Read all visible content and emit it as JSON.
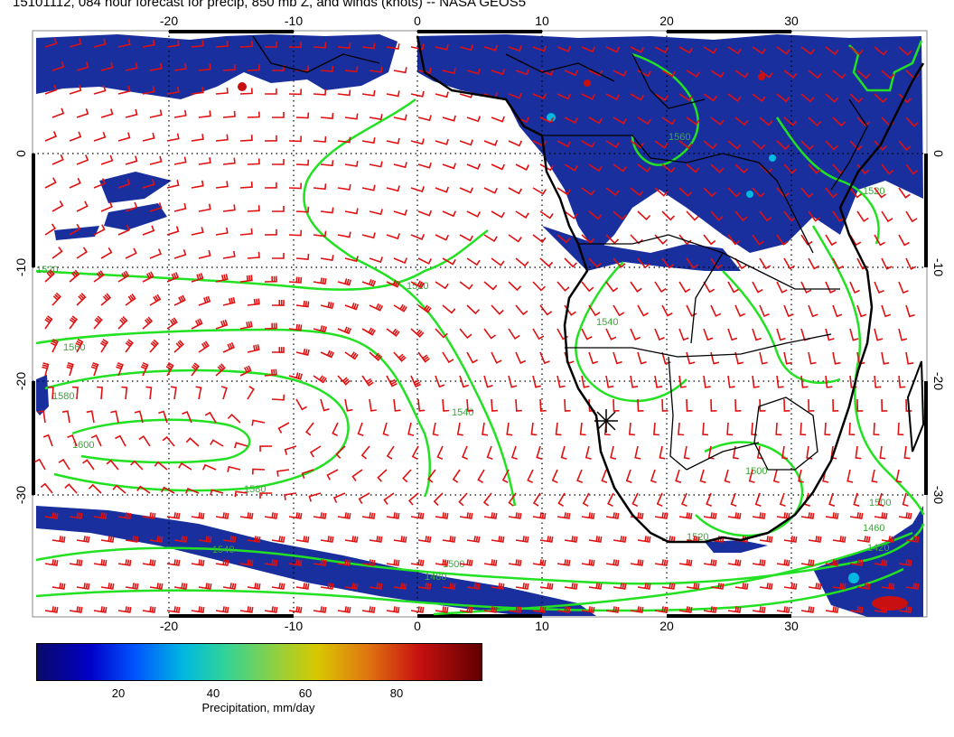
{
  "title": "15101112, 084 hour forecast for precip, 850 mb Z, and winds (knots) -- NASA GEOS5",
  "map": {
    "lon_ticks_top": [
      "-20",
      "-10",
      "0",
      "10",
      "20",
      "30"
    ],
    "lon_ticks_bottom": [
      "-20",
      "-10",
      "0",
      "10",
      "20",
      "30"
    ],
    "lat_ticks_left": [
      "0",
      "-10",
      "-20",
      "-30"
    ],
    "lat_ticks_right": [
      "0",
      "-10",
      "-20",
      "-30"
    ],
    "contour_labels": [
      "1520",
      "1560",
      "1580",
      "1600",
      "1520",
      "1540",
      "1580",
      "1500",
      "1460",
      "1420",
      "1540",
      "1500",
      "1480",
      "1520",
      "1560",
      "1540",
      "1500",
      "1520"
    ],
    "colors": {
      "precip_fill": "#1a2f9e",
      "contour": "#22e022",
      "wind_barbs": "#e01010",
      "coastline": "#000000"
    }
  },
  "colorbar": {
    "ticks": [
      "20",
      "40",
      "60",
      "80"
    ],
    "label": "Precipitation, mm/day"
  }
}
